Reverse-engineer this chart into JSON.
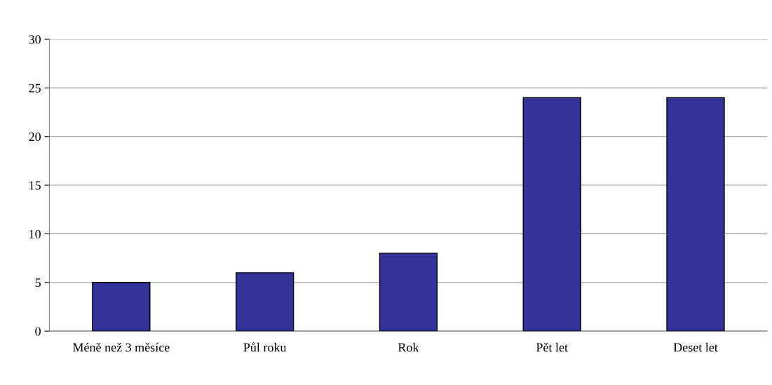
{
  "chart_data": {
    "type": "bar",
    "categories": [
      "Méně než 3 měsíce",
      "Půl roku",
      "Rok",
      "Pět let",
      "Deset let"
    ],
    "values": [
      5,
      6,
      8,
      24,
      24
    ],
    "color": "#333399",
    "ylim": [
      0,
      30
    ],
    "yticks": [
      0,
      5,
      10,
      15,
      20,
      25,
      30
    ],
    "grid": "y",
    "legend": false
  }
}
